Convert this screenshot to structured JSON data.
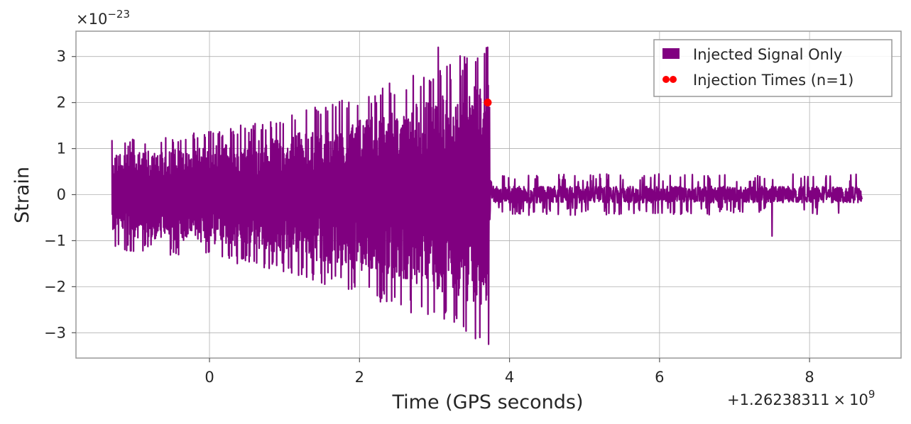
{
  "chart_data": {
    "type": "line",
    "xlabel": "Time (GPS seconds)",
    "ylabel": "Strain",
    "x_offset_label": "+1.26238311",
    "x_offset_times": "×",
    "x_offset_base": "10",
    "x_offset_exp": "9",
    "y_scale_prefix": "×10",
    "y_scale_exp": "−23",
    "xlim": [
      -1.78,
      9.22
    ],
    "ylim": [
      -3.55,
      3.55
    ],
    "xticks": [
      0,
      2,
      4,
      6,
      8
    ],
    "xtick_labels": [
      "0",
      "2",
      "4",
      "6",
      "8"
    ],
    "yticks": [
      3,
      2,
      1,
      0,
      -1,
      -2,
      -3
    ],
    "ytick_labels": [
      "3",
      "2",
      "1",
      "0",
      "−1",
      "−2",
      "−3"
    ],
    "grid": true,
    "legend_position": "top-right",
    "series": [
      {
        "name": "Injected Signal Only",
        "color": "#800080",
        "x_range": [
          -1.3,
          8.7
        ],
        "chirp_end": 3.72,
        "envelope": [
          {
            "x": -1.3,
            "amp": 1.2
          },
          {
            "x": 0.0,
            "amp": 1.4
          },
          {
            "x": 1.0,
            "amp": 1.7
          },
          {
            "x": 2.0,
            "amp": 2.2
          },
          {
            "x": 3.0,
            "amp": 2.8
          },
          {
            "x": 3.72,
            "amp": 3.25
          },
          {
            "x": 3.75,
            "amp": 0.45
          },
          {
            "x": 8.7,
            "amp": 0.45
          }
        ],
        "peaks": [
          {
            "x": 3.05,
            "y": 3.2
          },
          {
            "x": 3.71,
            "y": 3.2
          },
          {
            "x": 3.72,
            "y": -3.25
          },
          {
            "x": 7.5,
            "y": -0.9
          }
        ]
      },
      {
        "name": "Injection Times (n=1)",
        "type": "scatter",
        "color": "#ff0000",
        "points": [
          {
            "x": 3.71,
            "y": 2.0
          }
        ]
      }
    ]
  }
}
